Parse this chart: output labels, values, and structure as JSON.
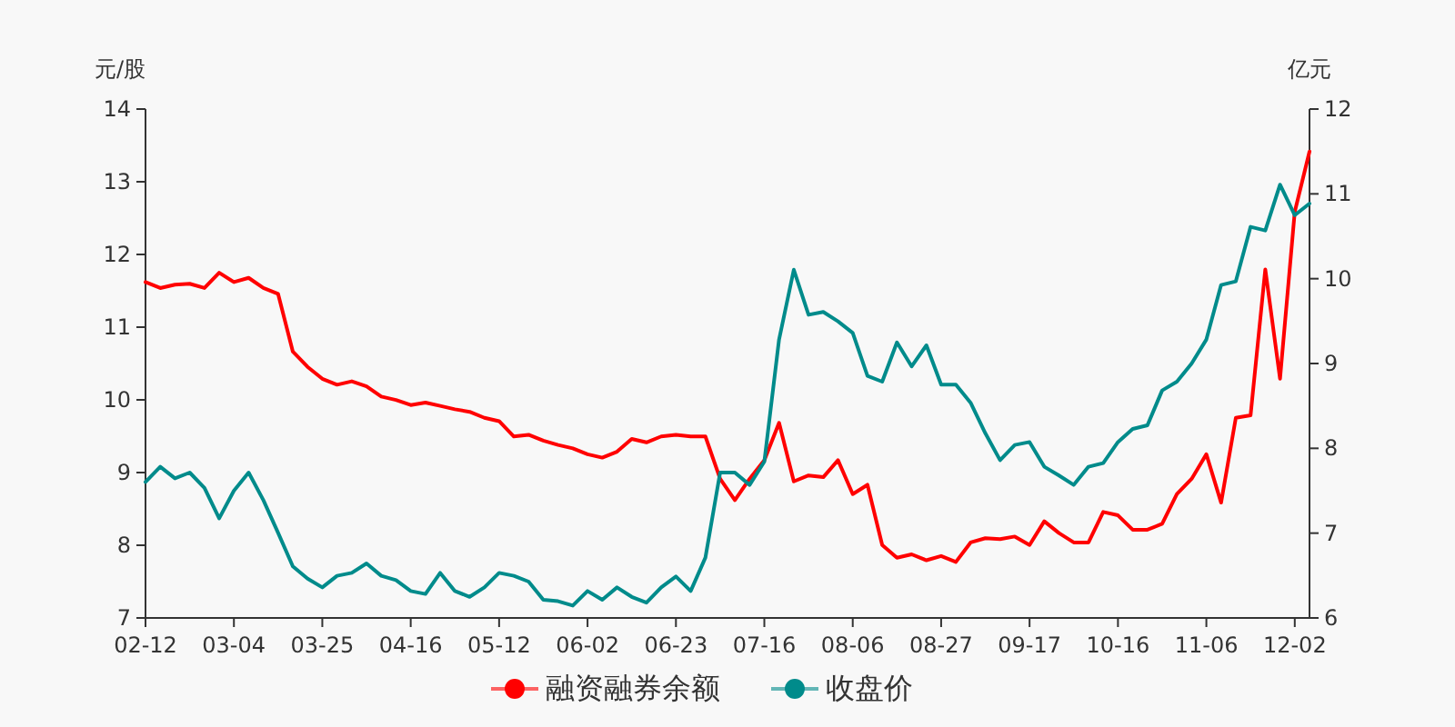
{
  "chart_data": {
    "type": "line",
    "ylabel": "元/股",
    "y2label": "亿元",
    "categories": [
      "02-12",
      null,
      null,
      null,
      null,
      null,
      "03-04",
      null,
      null,
      null,
      null,
      null,
      "03-25",
      null,
      null,
      null,
      null,
      null,
      "04-16",
      null,
      null,
      null,
      null,
      null,
      "05-12",
      null,
      null,
      null,
      null,
      null,
      "06-02",
      null,
      null,
      null,
      null,
      null,
      "06-23",
      null,
      null,
      null,
      null,
      null,
      "07-16",
      null,
      null,
      null,
      null,
      null,
      "08-06",
      null,
      null,
      null,
      null,
      null,
      "08-27",
      null,
      null,
      null,
      null,
      null,
      "09-17",
      null,
      null,
      null,
      null,
      null,
      "10-16",
      null,
      null,
      null,
      null,
      null,
      "11-06",
      null,
      null,
      null,
      null,
      null,
      "12-02",
      null
    ],
    "ylim": [
      7,
      14
    ],
    "yticks": [
      7,
      8,
      9,
      10,
      11,
      12,
      13,
      14
    ],
    "y2lim": [
      6,
      12
    ],
    "y2ticks": [
      6,
      7,
      8,
      9,
      10,
      11,
      12
    ],
    "legend": "bottom",
    "grid": false,
    "series": [
      {
        "name": "融资融券余额",
        "color": "#ff0000",
        "axis": "y2",
        "values": [
          9.96,
          9.89,
          9.93,
          9.94,
          9.89,
          10.07,
          9.96,
          10.01,
          9.89,
          9.82,
          9.14,
          8.96,
          8.82,
          8.75,
          8.79,
          8.73,
          8.61,
          8.57,
          8.51,
          8.54,
          8.5,
          8.46,
          8.43,
          8.36,
          8.32,
          8.14,
          8.16,
          8.09,
          8.04,
          8.0,
          7.93,
          7.89,
          7.96,
          8.11,
          8.07,
          8.14,
          8.16,
          8.14,
          8.14,
          7.64,
          7.39,
          7.64,
          7.86,
          8.3,
          7.61,
          7.68,
          7.66,
          7.86,
          7.46,
          7.57,
          6.86,
          6.71,
          6.75,
          6.68,
          6.73,
          6.66,
          6.89,
          6.94,
          6.93,
          6.96,
          6.86,
          7.14,
          7.0,
          6.89,
          6.89,
          7.25,
          7.21,
          7.04,
          7.04,
          7.11,
          7.46,
          7.64,
          7.93,
          7.36,
          8.36,
          8.39,
          10.11,
          8.82,
          10.79,
          11.5
        ]
      },
      {
        "name": "收盘价",
        "color": "#008b8b",
        "axis": "y",
        "values": [
          8.87,
          9.08,
          8.92,
          9.0,
          8.79,
          8.37,
          8.75,
          9.0,
          8.62,
          8.17,
          7.71,
          7.54,
          7.42,
          7.58,
          7.62,
          7.75,
          7.58,
          7.52,
          7.37,
          7.33,
          7.62,
          7.37,
          7.29,
          7.42,
          7.62,
          7.58,
          7.5,
          7.25,
          7.23,
          7.17,
          7.37,
          7.25,
          7.42,
          7.29,
          7.21,
          7.42,
          7.57,
          7.37,
          7.83,
          9.0,
          9.0,
          8.83,
          9.15,
          10.83,
          11.79,
          11.17,
          11.21,
          11.08,
          10.92,
          10.33,
          10.25,
          10.79,
          10.46,
          10.75,
          10.21,
          10.21,
          9.96,
          9.54,
          9.17,
          9.38,
          9.42,
          9.08,
          8.96,
          8.83,
          9.08,
          9.13,
          9.42,
          9.6,
          9.65,
          10.13,
          10.25,
          10.5,
          10.83,
          11.58,
          11.63,
          12.38,
          12.33,
          12.96,
          12.54,
          12.7
        ]
      }
    ]
  }
}
